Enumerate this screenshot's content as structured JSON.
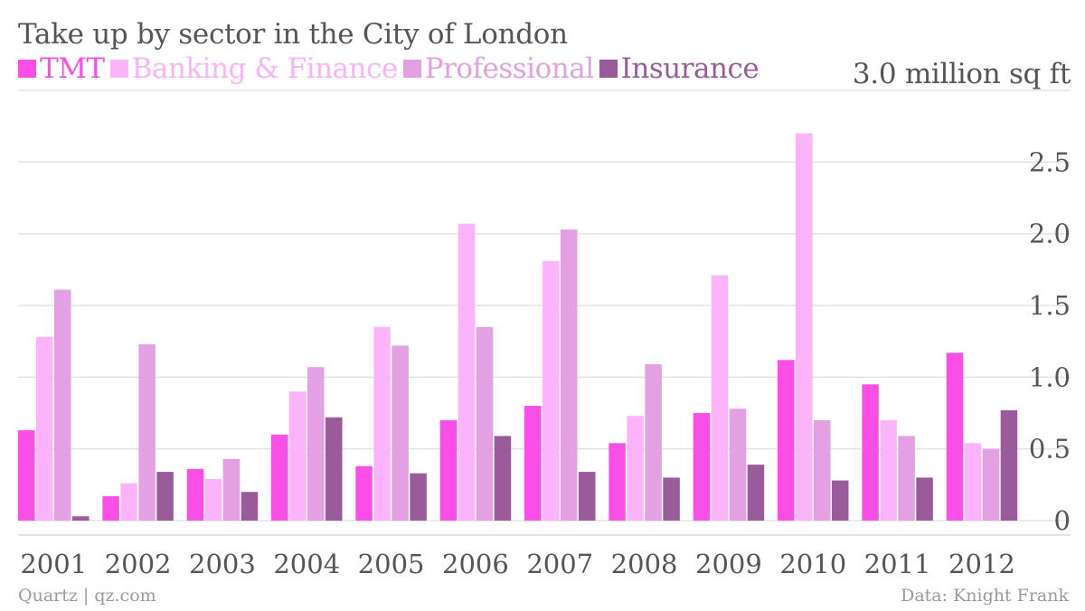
{
  "chart_data": {
    "type": "bar",
    "title": "Take up by sector in the City of London",
    "unit_label": "3.0 million sq ft",
    "categories": [
      "2001",
      "2002",
      "2003",
      "2004",
      "2005",
      "2006",
      "2007",
      "2008",
      "2009",
      "2010",
      "2011",
      "2012"
    ],
    "series": [
      {
        "name": "TMT",
        "color": "#f94fe7",
        "values": [
          0.63,
          0.17,
          0.36,
          0.6,
          0.38,
          0.7,
          0.8,
          0.54,
          0.75,
          1.12,
          0.95,
          1.17
        ]
      },
      {
        "name": "Banking & Finance",
        "color": "#fbb3fa",
        "values": [
          1.28,
          0.26,
          0.29,
          0.9,
          1.35,
          2.07,
          1.81,
          0.73,
          1.71,
          2.7,
          0.7,
          0.54
        ]
      },
      {
        "name": "Professional",
        "color": "#e3a0e2",
        "values": [
          1.61,
          1.23,
          0.43,
          1.07,
          1.22,
          1.35,
          2.03,
          1.09,
          0.78,
          0.7,
          0.59,
          0.5
        ]
      },
      {
        "name": "Insurance",
        "color": "#9a5b9a",
        "values": [
          0.03,
          0.34,
          0.2,
          0.72,
          0.33,
          0.59,
          0.34,
          0.3,
          0.39,
          0.28,
          0.3,
          0.77
        ]
      }
    ],
    "ylim": [
      0,
      3.0
    ],
    "yticks": [
      {
        "value": 0,
        "label": "0"
      },
      {
        "value": 0.5,
        "label": "0.5"
      },
      {
        "value": 1.0,
        "label": "1.0"
      },
      {
        "value": 1.5,
        "label": "1.5"
      },
      {
        "value": 2.0,
        "label": "2.0"
      },
      {
        "value": 2.5,
        "label": "2.5"
      }
    ],
    "grid": true,
    "legend_position": "top-left"
  },
  "footer": {
    "source_left": "Quartz | qz.com",
    "source_right": "Data: Knight Frank"
  }
}
